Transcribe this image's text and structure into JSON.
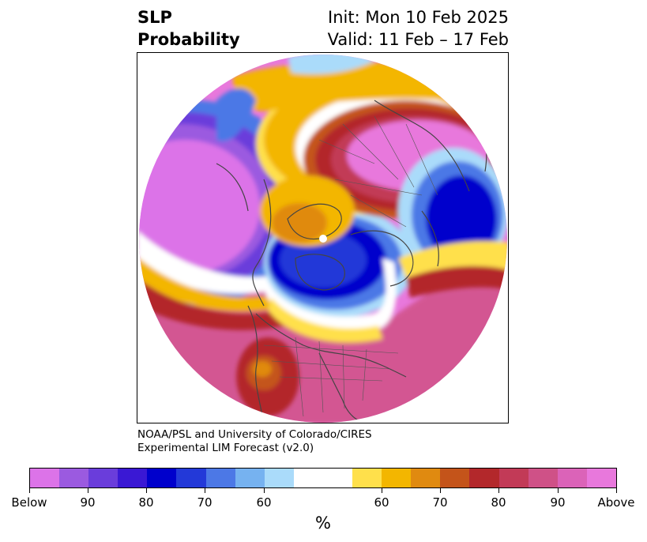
{
  "title": {
    "left_line1": "SLP",
    "left_line2": "Probability",
    "right_line1": "Init: Mon 10 Feb 2025",
    "right_line2": "Valid: 11 Feb – 17 Feb"
  },
  "credit": {
    "line1": "NOAA/PSL and University of Colorado/CIRES",
    "line2": "Experimental LIM Forecast (v2.0)"
  },
  "colorbar": {
    "colors": [
      "#dc73e8",
      "#9b5ae0",
      "#6a3ddb",
      "#3a18d4",
      "#0000cc",
      "#2339d8",
      "#4c78e6",
      "#76b2f0",
      "#aadbfa",
      "#ffffff",
      "#ffe04b",
      "#f3b600",
      "#e08a10",
      "#c4541a",
      "#b3282b",
      "#c23a57",
      "#cf5187",
      "#db63b8",
      "#e878dc"
    ],
    "tick_labels": [
      "Below",
      "90",
      "80",
      "70",
      "60",
      "60",
      "70",
      "80",
      "90",
      "Above"
    ],
    "unit": "%"
  },
  "map": {
    "projection": "north-polar-stereographic",
    "colors": {
      "above_strong": "#e878dc",
      "above_mid": "#cf5187",
      "above_low": "#b3282b",
      "below_strong": "#dc73e8",
      "below_mid": "#0000cc",
      "below_low": "#4c78e6",
      "orange": "#f3b600",
      "yellow": "#ffe04b",
      "light_blue": "#aadbfa"
    }
  }
}
